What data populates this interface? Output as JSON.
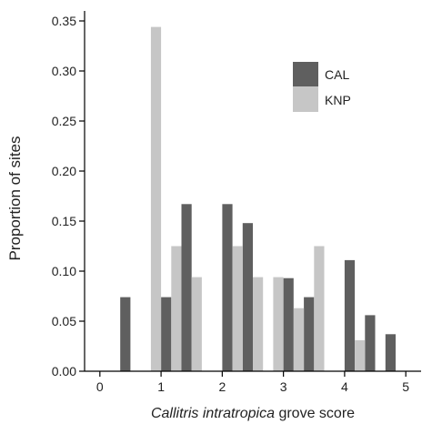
{
  "chart_data": {
    "type": "bar",
    "xlabel_italic": "Callitris intratropica",
    "xlabel_rest": " grove score",
    "ylabel": "Proportion of sites",
    "xlim": [
      -0.25,
      5.25
    ],
    "ylim": [
      0,
      0.36
    ],
    "xticks": [
      0,
      1,
      2,
      3,
      4,
      5
    ],
    "xtick_labels": [
      "0",
      "1",
      "2",
      "3",
      "4",
      "5"
    ],
    "yticks": [
      0,
      0.05,
      0.1,
      0.15,
      0.2,
      0.25,
      0.3,
      0.35
    ],
    "ytick_labels": [
      "0.00",
      "0.05",
      "0.10",
      "0.15",
      "0.20",
      "0.25",
      "0.30",
      "0.35"
    ],
    "grid": false,
    "legend_position": "top-right",
    "bin_width": 0.3333,
    "bar_width": 0.1667,
    "series": [
      {
        "name": "CAL",
        "color": "#5f5f5f",
        "offset": 0,
        "x": [
          0.3333,
          0.6667,
          1.0,
          1.3333,
          1.6667,
          2.0,
          2.3333,
          2.6667,
          3.0,
          3.3333,
          3.6667,
          4.0,
          4.3333,
          4.6667
        ],
        "values": [
          0.074,
          0.0,
          0.074,
          0.167,
          0.0,
          0.167,
          0.148,
          0.0,
          0.093,
          0.074,
          0.0,
          0.111,
          0.056,
          0.037
        ]
      },
      {
        "name": "KNP",
        "color": "#c6c6c6",
        "offset": 1,
        "x": [
          0.3333,
          0.6667,
          1.0,
          1.3333,
          1.6667,
          2.0,
          2.3333,
          2.6667,
          3.0,
          3.3333,
          3.6667,
          4.0,
          4.3333,
          4.6667
        ],
        "values": [
          0.0,
          0.344,
          0.125,
          0.094,
          0.0,
          0.125,
          0.094,
          0.094,
          0.063,
          0.125,
          0.0,
          0.031,
          0.0,
          0.0
        ]
      }
    ]
  }
}
